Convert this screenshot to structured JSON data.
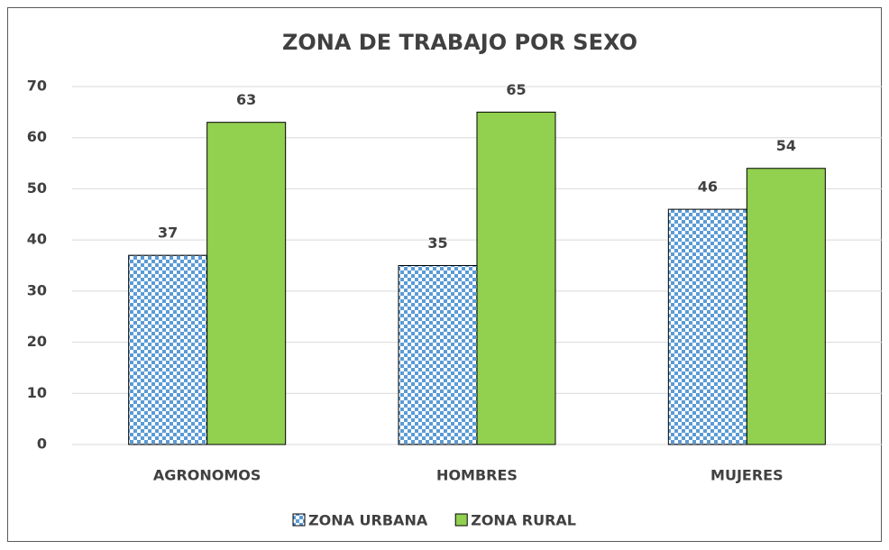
{
  "chart_data": {
    "type": "bar",
    "title": "ZONA DE TRABAJO POR SEXO",
    "categories": [
      "AGRONOMOS",
      "HOMBRES",
      "MUJERES"
    ],
    "series": [
      {
        "name": "ZONA URBANA",
        "color": "#5b9bd5",
        "values": [
          37,
          35,
          46
        ]
      },
      {
        "name": "ZONA RURAL",
        "color": "#92d050",
        "values": [
          63,
          65,
          54
        ]
      }
    ],
    "ylim": [
      0,
      70
    ],
    "yticks": [
      0,
      10,
      20,
      30,
      40,
      50,
      60,
      70
    ],
    "grid": true,
    "legend": "bottom"
  }
}
